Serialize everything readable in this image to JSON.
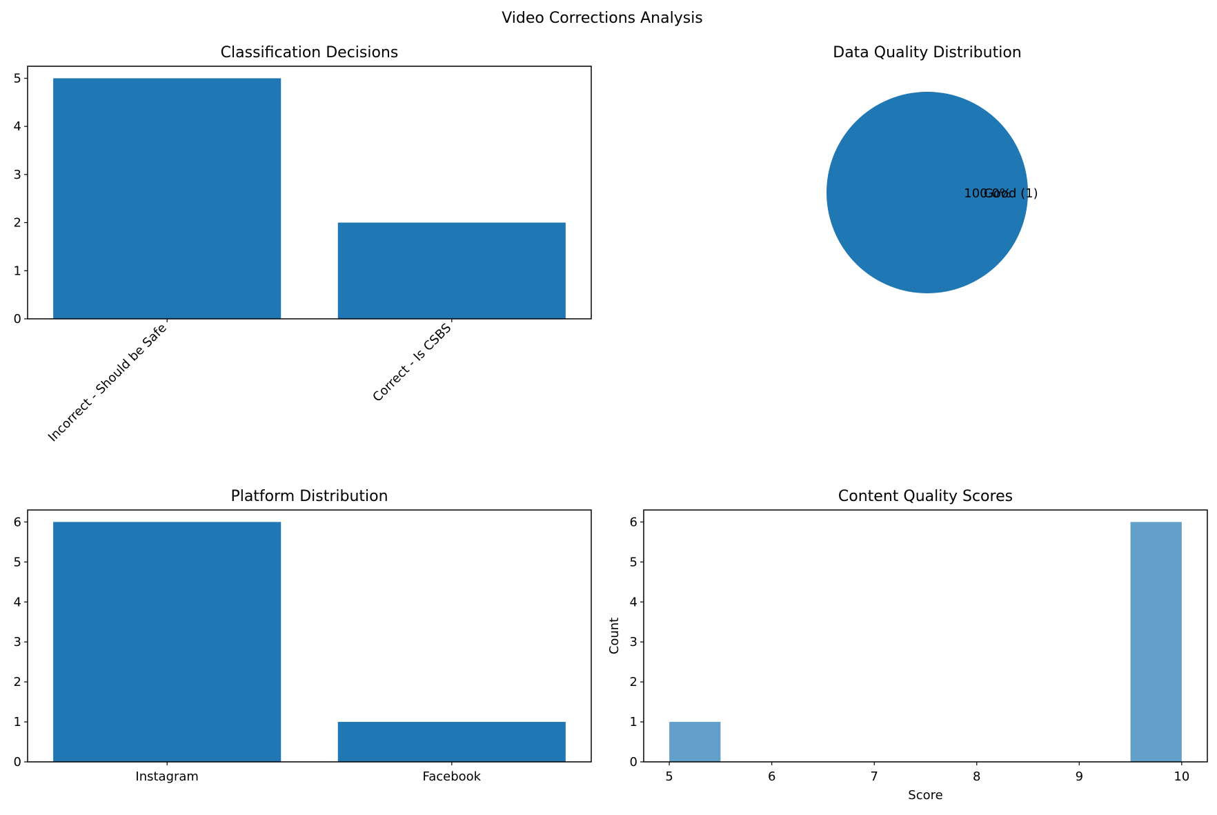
{
  "figure": {
    "title": "Video Corrections Analysis"
  },
  "chart_data": [
    {
      "type": "bar",
      "title": "Classification Decisions",
      "categories": [
        "Incorrect - Should be Safe",
        "Correct - Is CSBS"
      ],
      "values": [
        5,
        2
      ],
      "xlabel": "",
      "ylabel": "",
      "ylim": [
        0,
        5.25
      ],
      "yticks": [
        0,
        1,
        2,
        3,
        4,
        5
      ],
      "xtick_rotation": -45,
      "color": "#1f77b4",
      "grid": false
    },
    {
      "type": "pie",
      "title": "Data Quality Distribution",
      "labels": [
        "Good (1)"
      ],
      "values": [
        1
      ],
      "autopct": [
        "100.0%"
      ],
      "colors": [
        "#1f77b4"
      ]
    },
    {
      "type": "bar",
      "title": "Platform Distribution",
      "categories": [
        "Instagram",
        "Facebook"
      ],
      "values": [
        6,
        1
      ],
      "xlabel": "",
      "ylabel": "",
      "ylim": [
        0,
        6.3
      ],
      "yticks": [
        0,
        1,
        2,
        3,
        4,
        5,
        6
      ],
      "color": "#1f77b4",
      "grid": false
    },
    {
      "type": "bar",
      "title": "Content Quality Scores",
      "bins": [
        [
          5,
          5.5,
          1
        ],
        [
          5.5,
          6,
          0
        ],
        [
          6,
          6.5,
          0
        ],
        [
          6.5,
          7,
          0
        ],
        [
          7,
          7.5,
          0
        ],
        [
          7.5,
          8,
          0
        ],
        [
          8,
          8.5,
          0
        ],
        [
          8.5,
          9,
          0
        ],
        [
          9,
          9.5,
          0
        ],
        [
          9.5,
          10,
          6
        ]
      ],
      "xlabel": "Score",
      "ylabel": "Count",
      "xlim": [
        4.75,
        10.25
      ],
      "ylim": [
        0,
        6.3
      ],
      "xticks": [
        5,
        6,
        7,
        8,
        9,
        10
      ],
      "yticks": [
        0,
        1,
        2,
        3,
        4,
        5,
        6
      ],
      "color": "#1f77b4",
      "opacity": 0.7,
      "grid": false
    }
  ]
}
